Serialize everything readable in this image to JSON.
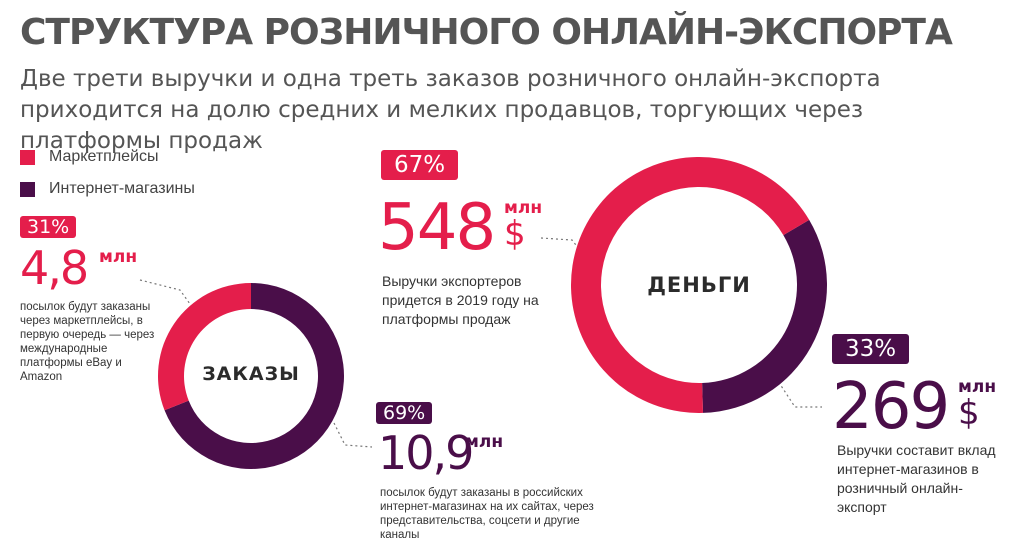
{
  "header": {
    "title": "СТРУКТУРА РОЗНИЧНОГО ОНЛАЙН-ЭКСПОРТА",
    "subtitle": "Две трети выручки и одна треть заказов розничного онлайн-экспорта приходится на долю средних и мелких продавцов, торгующих через платформы продаж"
  },
  "legend": [
    {
      "label": "Маркетплейсы",
      "color": "#e41e4b"
    },
    {
      "label": "Интернет-магазины",
      "color": "#4a0e49"
    }
  ],
  "orders": {
    "center_label": "ЗАКАЗЫ",
    "marketplaces": {
      "percent": "31%",
      "value": "4,8",
      "unit": "млн",
      "description": "посылок будут заказаны через маркетплейсы, в первую очередь — через международные платформы eBay и Amazon"
    },
    "online_stores": {
      "percent": "69%",
      "value": "10,9",
      "unit": "млн",
      "description": "посылок будут заказаны в российских интернет-магазинах на их сайтах, через представительства, соцсети и другие каналы"
    }
  },
  "money": {
    "center_label": "ДЕНЬГИ",
    "marketplaces": {
      "percent": "67%",
      "value": "548",
      "unit": "млн",
      "currency": "$",
      "description": "Выручки экспортеров придется в 2019 году на платформы продаж"
    },
    "online_stores": {
      "percent": "33%",
      "value": "269",
      "unit": "млн",
      "currency": "$",
      "description": "Выручки составит вклад интернет-магазинов в розничный онлайн-экспорт"
    }
  },
  "chart_data": [
    {
      "type": "pie",
      "title": "ЗАКАЗЫ",
      "categories": [
        "Маркетплейсы",
        "Интернет-магазины"
      ],
      "values": [
        31,
        69
      ],
      "absolute_values_mln": [
        4.8,
        10.9
      ],
      "colors": [
        "#e41e4b",
        "#4a0e49"
      ]
    },
    {
      "type": "pie",
      "title": "ДЕНЬГИ",
      "categories": [
        "Маркетплейсы",
        "Интернет-магазины"
      ],
      "values": [
        67,
        33
      ],
      "absolute_values_mln_usd": [
        548,
        269
      ],
      "colors": [
        "#e41e4b",
        "#4a0e49"
      ]
    }
  ]
}
